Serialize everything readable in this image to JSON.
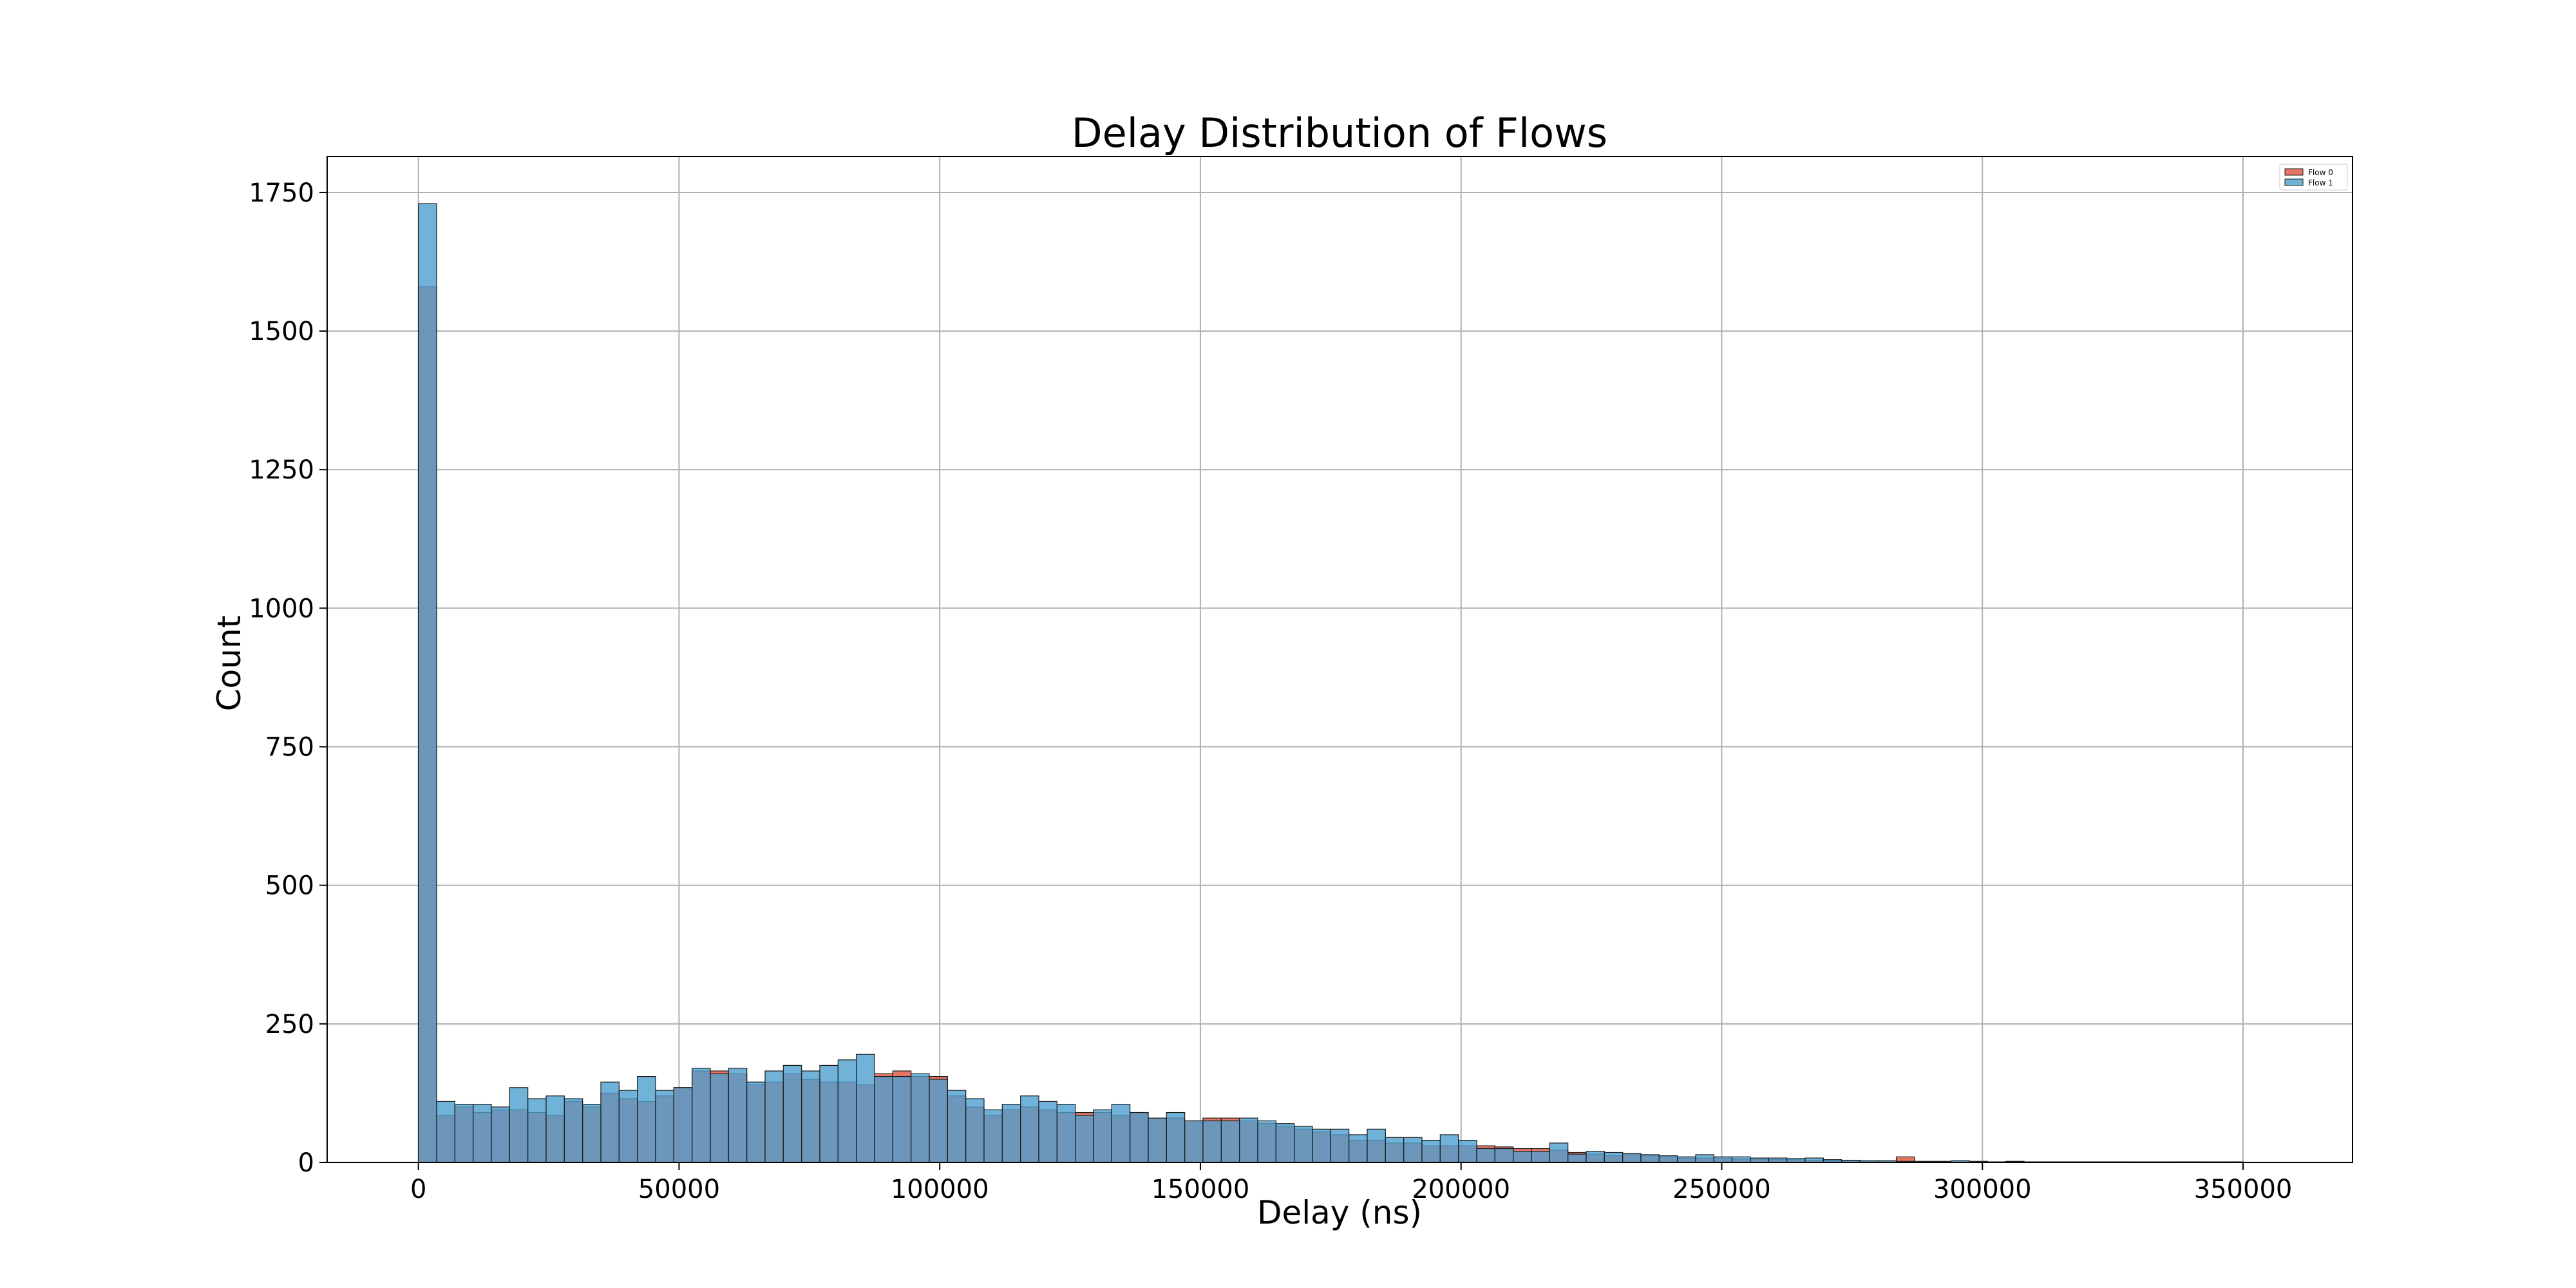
{
  "chart_data": {
    "type": "bar",
    "title": "Delay Distribution of Flows",
    "xlabel": "Delay (ns)",
    "ylabel": "Count",
    "xlim": [
      -17500,
      371000
    ],
    "ylim": [
      0,
      1815
    ],
    "x_ticks": [
      0,
      50000,
      100000,
      150000,
      200000,
      250000,
      300000,
      350000
    ],
    "y_ticks": [
      0,
      250,
      500,
      750,
      1000,
      1250,
      1500,
      1750
    ],
    "grid": true,
    "legend_position": "top-right",
    "bin_width": 3500,
    "series": [
      {
        "name": "Flow 0",
        "color": "#e0533d",
        "bins_start": [
          0,
          3500,
          7000,
          10500,
          14000,
          17500,
          21000,
          24500,
          28000,
          31500,
          35000,
          38500,
          42000,
          45500,
          49000,
          52500,
          56000,
          59500,
          63000,
          66500,
          70000,
          73500,
          77000,
          80500,
          84000,
          87500,
          91000,
          94500,
          98000,
          101500,
          105000,
          108500,
          112000,
          115500,
          119000,
          122500,
          126000,
          129500,
          133000,
          136500,
          140000,
          143500,
          147000,
          150500,
          154000,
          157500,
          161000,
          164500,
          168000,
          171500,
          175000,
          178500,
          182000,
          185500,
          189000,
          192500,
          196000,
          199500,
          203000,
          206500,
          210000,
          213500,
          217000,
          220500,
          224000,
          227500,
          231000,
          234500,
          238000,
          241500,
          245000,
          248500,
          252000,
          255500,
          259000,
          262500,
          266000,
          269500,
          273000,
          276500,
          280000,
          283500,
          287000,
          290500,
          294000,
          297500,
          301000,
          304500,
          308000,
          311500,
          315000,
          318500,
          322000,
          325500,
          329000,
          332500,
          336000,
          339500,
          343000,
          346500
        ],
        "counts": [
          1580,
          85,
          100,
          90,
          95,
          95,
          90,
          85,
          110,
          100,
          125,
          115,
          110,
          120,
          135,
          165,
          165,
          160,
          140,
          145,
          160,
          150,
          145,
          145,
          140,
          160,
          165,
          155,
          155,
          120,
          100,
          85,
          95,
          100,
          95,
          90,
          90,
          90,
          85,
          90,
          80,
          80,
          75,
          80,
          80,
          75,
          70,
          65,
          60,
          55,
          50,
          40,
          40,
          35,
          35,
          30,
          30,
          30,
          30,
          28,
          25,
          25,
          22,
          18,
          15,
          12,
          15,
          12,
          10,
          8,
          8,
          8,
          6,
          6,
          5,
          5,
          4,
          3,
          3,
          2,
          2,
          10,
          1,
          1,
          1,
          1,
          1,
          2,
          1,
          1,
          1,
          1,
          1,
          1,
          0,
          0,
          1,
          1,
          0,
          1
        ]
      },
      {
        "name": "Flow 1",
        "color": "#4d9fcf",
        "bins_start": [
          0,
          3500,
          7000,
          10500,
          14000,
          17500,
          21000,
          24500,
          28000,
          31500,
          35000,
          38500,
          42000,
          45500,
          49000,
          52500,
          56000,
          59500,
          63000,
          66500,
          70000,
          73500,
          77000,
          80500,
          84000,
          87500,
          91000,
          94500,
          98000,
          101500,
          105000,
          108500,
          112000,
          115500,
          119000,
          122500,
          126000,
          129500,
          133000,
          136500,
          140000,
          143500,
          147000,
          150500,
          154000,
          157500,
          161000,
          164500,
          168000,
          171500,
          175000,
          178500,
          182000,
          185500,
          189000,
          192500,
          196000,
          199500,
          203000,
          206500,
          210000,
          213500,
          217000,
          220500,
          224000,
          227500,
          231000,
          234500,
          238000,
          241500,
          245000,
          248500,
          252000,
          255500,
          259000,
          262500,
          266000,
          269500,
          273000,
          276500,
          280000,
          283500,
          287000,
          290500,
          294000,
          297500,
          301000,
          304500,
          308000,
          311500,
          315000,
          318500,
          322000,
          325500,
          329000,
          332500,
          336000,
          339500,
          343000,
          346500
        ],
        "counts": [
          1730,
          110,
          105,
          105,
          100,
          135,
          115,
          120,
          115,
          105,
          145,
          130,
          155,
          130,
          135,
          170,
          160,
          170,
          145,
          165,
          175,
          165,
          175,
          185,
          195,
          155,
          155,
          160,
          150,
          130,
          115,
          95,
          105,
          120,
          110,
          105,
          85,
          95,
          105,
          90,
          80,
          90,
          75,
          75,
          75,
          80,
          75,
          70,
          65,
          60,
          60,
          50,
          60,
          45,
          45,
          40,
          50,
          40,
          25,
          25,
          20,
          20,
          35,
          15,
          20,
          18,
          16,
          14,
          12,
          10,
          14,
          10,
          10,
          8,
          8,
          7,
          8,
          5,
          4,
          3,
          3,
          2,
          2,
          2,
          3,
          2,
          1,
          1,
          1,
          1,
          1,
          1,
          1,
          1,
          1,
          1,
          1,
          1,
          1,
          1
        ]
      }
    ]
  }
}
